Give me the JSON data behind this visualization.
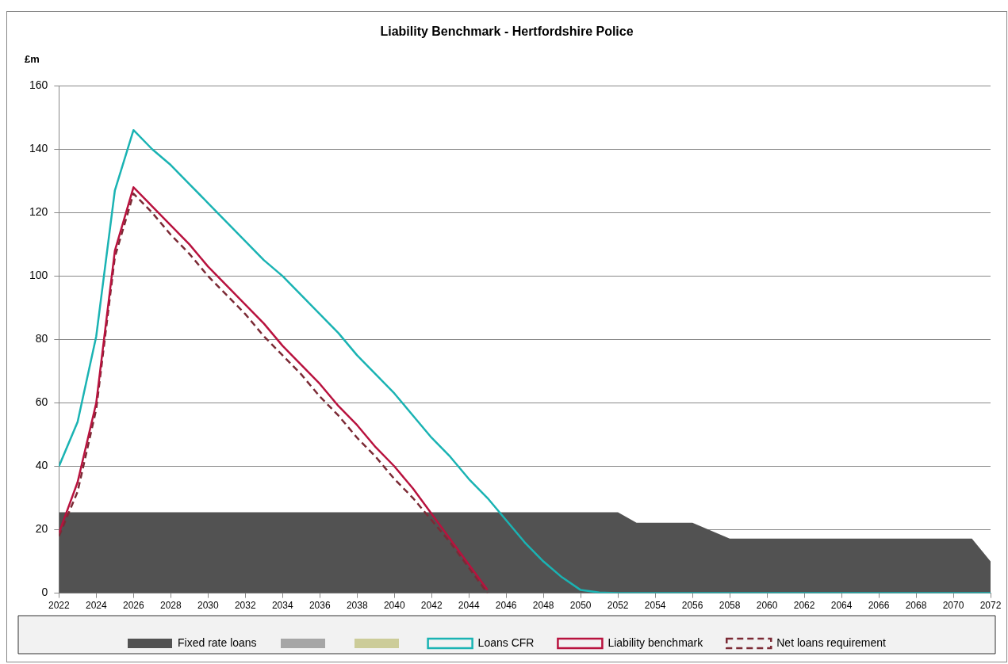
{
  "chart_data": {
    "type": "line",
    "title": "Liability Benchmark - Hertfordshire Police",
    "ylabel": "£m",
    "x": [
      2022,
      2023,
      2024,
      2025,
      2026,
      2027,
      2028,
      2029,
      2030,
      2031,
      2032,
      2033,
      2034,
      2035,
      2036,
      2037,
      2038,
      2039,
      2040,
      2041,
      2042,
      2043,
      2044,
      2045,
      2046,
      2047,
      2048,
      2049,
      2050,
      2051,
      2052,
      2053,
      2054,
      2055,
      2056,
      2057,
      2058,
      2059,
      2060,
      2061,
      2062,
      2063,
      2064,
      2065,
      2066,
      2067,
      2068,
      2069,
      2070,
      2071,
      2072
    ],
    "xlim": [
      2022,
      2072
    ],
    "xticks": [
      2022,
      2024,
      2026,
      2028,
      2030,
      2032,
      2034,
      2036,
      2038,
      2040,
      2042,
      2044,
      2046,
      2048,
      2050,
      2052,
      2054,
      2056,
      2058,
      2060,
      2062,
      2064,
      2066,
      2068,
      2070,
      2072
    ],
    "ylim": [
      0,
      160
    ],
    "yticks": [
      0,
      20,
      40,
      60,
      80,
      100,
      120,
      140,
      160
    ],
    "grid": "y",
    "legend": "bottom",
    "series": [
      {
        "name": "Fixed rate loans",
        "type": "area",
        "color": "#525252",
        "values": [
          25.5,
          25.5,
          25.5,
          25.5,
          25.5,
          25.5,
          25.5,
          25.5,
          25.5,
          25.5,
          25.5,
          25.5,
          25.5,
          25.5,
          25.5,
          25.5,
          25.5,
          25.5,
          25.5,
          25.5,
          25.5,
          25.5,
          25.5,
          25.5,
          25.5,
          25.5,
          25.5,
          25.5,
          25.5,
          25.5,
          25.5,
          22.2,
          22.2,
          22.2,
          22.2,
          19.7,
          17.2,
          17.2,
          17.2,
          17.2,
          17.2,
          17.2,
          17.2,
          17.2,
          17.2,
          17.2,
          17.2,
          17.2,
          17.2,
          17.2,
          10
        ]
      },
      {
        "name": "Loans CFR",
        "type": "line",
        "color": "#1ab3b3",
        "line_style": "solid",
        "values": [
          40,
          54,
          81,
          127,
          146,
          140,
          135,
          129,
          123,
          117,
          111,
          105,
          100,
          94,
          88,
          82,
          75,
          69,
          63,
          56,
          49,
          43,
          36,
          30,
          23,
          16,
          10,
          5,
          1,
          0.2,
          0,
          0,
          0,
          0,
          0,
          0,
          0,
          0,
          0,
          0,
          0,
          0,
          0,
          0,
          0,
          0,
          0,
          0,
          0,
          0,
          0
        ]
      },
      {
        "name": "Liability benchmark",
        "type": "line",
        "color": "#b8123e",
        "line_style": "solid",
        "values": [
          19,
          35,
          60,
          108,
          128,
          122,
          116,
          110,
          103,
          97,
          91,
          85,
          78,
          72,
          66,
          59,
          53,
          46,
          40,
          33,
          25,
          17,
          9,
          1,
          null,
          null,
          null,
          null,
          null,
          null,
          null,
          null,
          null,
          null,
          null,
          null,
          null,
          null,
          null,
          null,
          null,
          null,
          null,
          null,
          null,
          null,
          null,
          null,
          null,
          null,
          null
        ]
      },
      {
        "name": "Net loans requirement",
        "type": "line",
        "color": "#7b2a35",
        "line_style": "dashed",
        "values": [
          18,
          32,
          58,
          106,
          126,
          120,
          113,
          107,
          100,
          94,
          88,
          81,
          75,
          69,
          62,
          56,
          49,
          43,
          36,
          30,
          23,
          16,
          8,
          0,
          null,
          null,
          null,
          null,
          null,
          null,
          null,
          null,
          null,
          null,
          null,
          null,
          null,
          null,
          null,
          null,
          null,
          null,
          null,
          null,
          null,
          null,
          null,
          null,
          null,
          null,
          null
        ]
      }
    ]
  }
}
